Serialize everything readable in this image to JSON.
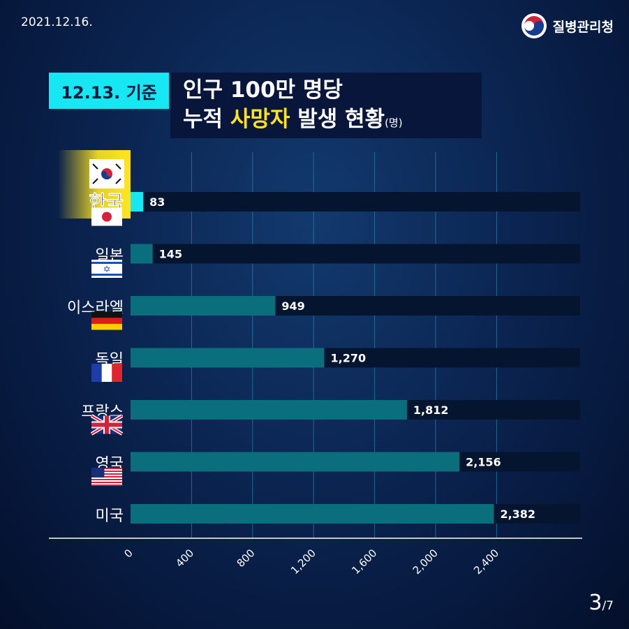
{
  "date": "2021.12.16.",
  "agency": "질병관리청",
  "basis": "12.13. 기준",
  "title_line1": "인구 100만 명당",
  "title_line2_a": "누적",
  "title_line2_hl": "사망자",
  "title_line2_b": "발생 현황",
  "title_unit": "(명)",
  "page": {
    "current": "3",
    "total": "/7"
  },
  "colors": {
    "highlight_bar": "#17e7f2",
    "bar": "#0a6e7c",
    "track": "#06152f",
    "highlight_label_bg": "#ffe521",
    "title_highlight": "#ffe521"
  },
  "chart_data": {
    "type": "bar",
    "orientation": "horizontal",
    "unit": "(명)",
    "categories": [
      "한국",
      "일본",
      "이스라엘",
      "독일",
      "프랑스",
      "영국",
      "미국"
    ],
    "values": [
      83,
      145,
      949,
      1270,
      1812,
      2156,
      2382
    ],
    "value_labels": [
      "83",
      "145",
      "949",
      "1,270",
      "1,812",
      "2,156",
      "2,382"
    ],
    "flags": [
      "korea-flag-icon",
      "japan-flag-icon",
      "israel-flag-icon",
      "germany-flag-icon",
      "france-flag-icon",
      "uk-flag-icon",
      "usa-flag-icon"
    ],
    "highlight": "한국",
    "x_ticks": [
      0,
      400,
      800,
      1200,
      1600,
      2000,
      2400
    ],
    "x_tick_labels": [
      "0",
      "400",
      "800",
      "1,200",
      "1,600",
      "2,000",
      "2,400"
    ],
    "xlim": [
      0,
      2850
    ],
    "grid": "vertical"
  }
}
